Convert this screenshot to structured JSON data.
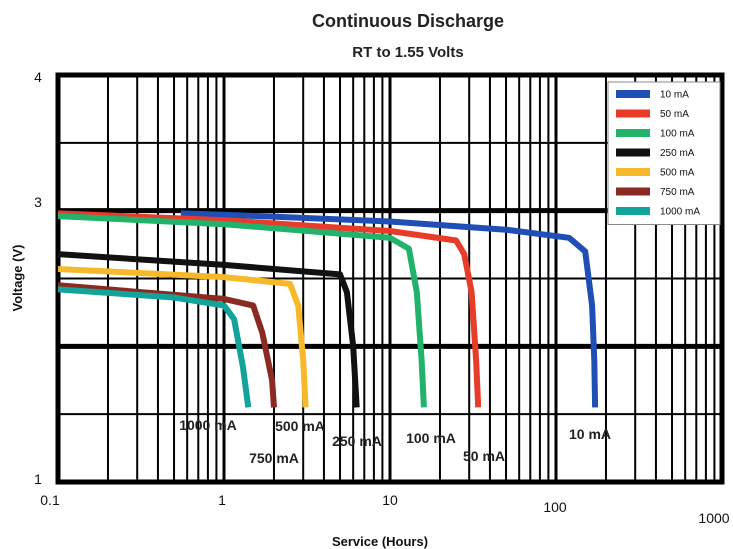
{
  "chart_data": {
    "type": "line",
    "title": "Continuous Discharge",
    "subtitle": "RT to 1.55 Volts",
    "xlabel": "Service (Hours)",
    "ylabel": "Voltage (V)",
    "x_scale": "log",
    "xlim": [
      0.1,
      1000
    ],
    "ylim": [
      1,
      4
    ],
    "x_ticks": [
      "0.1",
      "1",
      "10",
      "100",
      "1000"
    ],
    "y_ticks": [
      "1",
      "3",
      "4"
    ],
    "grid": true,
    "legend_position": "top-right",
    "series": [
      {
        "name": "10 mA",
        "color": "#1f4fb4",
        "annotation": "10 mA",
        "x": [
          0.55,
          1,
          10,
          50,
          120,
          150,
          165,
          170,
          172
        ],
        "y": [
          2.98,
          2.97,
          2.92,
          2.86,
          2.8,
          2.7,
          2.3,
          1.9,
          1.55
        ]
      },
      {
        "name": "50 mA",
        "color": "#e83b2a",
        "annotation": "50 mA",
        "x": [
          0.1,
          1,
          10,
          25,
          28,
          31,
          33,
          34
        ],
        "y": [
          2.98,
          2.93,
          2.85,
          2.78,
          2.68,
          2.4,
          1.9,
          1.55
        ]
      },
      {
        "name": "100 mA",
        "color": "#21b26b",
        "annotation": "100 mA",
        "x": [
          0.1,
          1,
          10,
          13,
          14.5,
          15.5,
          16
        ],
        "y": [
          2.96,
          2.9,
          2.8,
          2.72,
          2.4,
          1.9,
          1.55
        ]
      },
      {
        "name": "250 mA",
        "color": "#111111",
        "annotation": "250 mA",
        "x": [
          0.1,
          1,
          5,
          5.5,
          6,
          6.3
        ],
        "y": [
          2.68,
          2.6,
          2.53,
          2.4,
          2.0,
          1.55
        ]
      },
      {
        "name": "500 mA",
        "color": "#f7b92a",
        "annotation": "500 mA",
        "x": [
          0.1,
          1,
          2.5,
          2.8,
          3.0,
          3.1
        ],
        "y": [
          2.57,
          2.51,
          2.46,
          2.3,
          1.9,
          1.55
        ]
      },
      {
        "name": "750 mA",
        "color": "#8b2a22",
        "annotation": "750 mA",
        "x": [
          0.1,
          1,
          1.5,
          1.7,
          1.95,
          2.0
        ],
        "y": [
          2.45,
          2.35,
          2.3,
          2.1,
          1.75,
          1.55
        ]
      },
      {
        "name": "1000 mA",
        "color": "#12a39a",
        "annotation": "1000 mA",
        "x": [
          0.1,
          0.5,
          1,
          1.15,
          1.3,
          1.4
        ],
        "y": [
          2.42,
          2.36,
          2.3,
          2.2,
          1.85,
          1.55
        ]
      }
    ]
  }
}
